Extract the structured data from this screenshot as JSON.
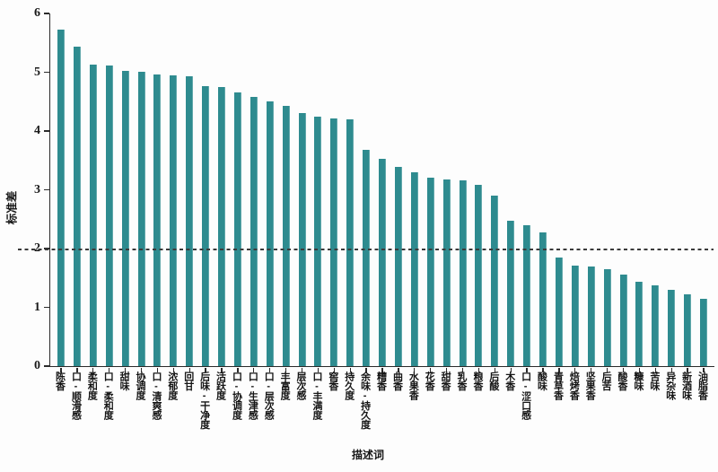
{
  "figure": {
    "background": "#fdfdfd",
    "axis_color": "#2b2b2b"
  },
  "chart_data": {
    "type": "bar",
    "title": "",
    "xlabel": "描述词",
    "ylabel": "标准差",
    "ylim": [
      0,
      6
    ],
    "y_ticks": [
      0,
      1,
      2,
      3,
      4,
      5,
      6
    ],
    "grid": false,
    "legend": "none",
    "bar_color": "#2e8b8f",
    "reference_line": {
      "y": 2,
      "style": "dashed",
      "color": "#3a3a3a"
    },
    "categories": [
      "陈香",
      "口-顺滑感",
      "柔和度",
      "口-柔和度",
      "甜味",
      "协调度",
      "口-清爽感",
      "浓郁度",
      "回甘",
      "后味-干净度",
      "活跃度",
      "口-协调度",
      "口-生津感",
      "口-层次感",
      "丰富度",
      "层次感",
      "口-丰满度",
      "窖香",
      "持久度",
      "余味-持久度",
      "糟香",
      "曲香",
      "水果香",
      "花香",
      "甜香",
      "乳香",
      "粮香",
      "后酸",
      "木香",
      "口-涩口感",
      "酸味",
      "青草香",
      "焙烤香",
      "坚果香",
      "后苦",
      "酸香",
      "糠味",
      "苦味",
      "异杂味",
      "新酒味",
      "油脂香"
    ],
    "values": [
      5.72,
      5.43,
      5.13,
      5.12,
      5.03,
      5.01,
      4.96,
      4.95,
      4.93,
      4.77,
      4.75,
      4.66,
      4.58,
      4.5,
      4.43,
      4.3,
      4.25,
      4.22,
      4.2,
      3.68,
      3.53,
      3.39,
      3.3,
      3.2,
      3.18,
      3.16,
      3.09,
      2.9,
      2.48,
      2.39,
      2.28,
      1.84,
      1.71,
      1.7,
      1.65,
      1.56,
      1.43,
      1.38,
      1.3,
      1.22,
      1.14
    ]
  }
}
